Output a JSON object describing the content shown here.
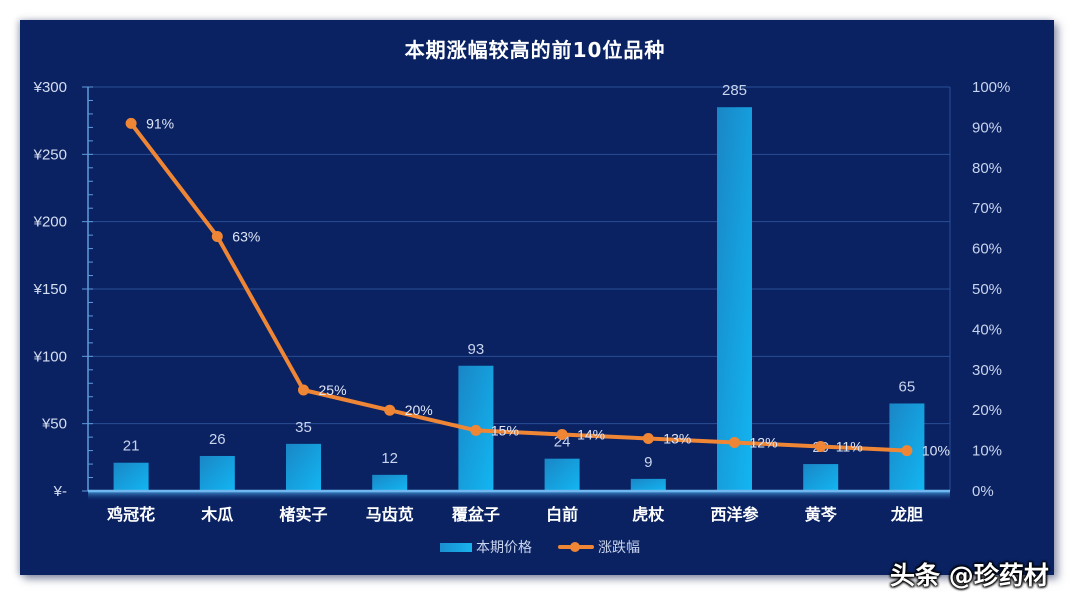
{
  "chart_data": {
    "type": "bar+line",
    "title": "本期涨幅较高的前10位品种",
    "categories": [
      "鸡冠花",
      "木瓜",
      "楮实子",
      "马齿苋",
      "覆盆子",
      "白前",
      "虎杖",
      "西洋参",
      "黄芩",
      "龙胆"
    ],
    "series": [
      {
        "name": "本期价格",
        "type": "bar",
        "axis": "left",
        "values": [
          21,
          26,
          35,
          12,
          93,
          24,
          9,
          285,
          20,
          65
        ],
        "color": "#15a6e6"
      },
      {
        "name": "涨跌幅",
        "type": "line",
        "axis": "right",
        "values": [
          91,
          63,
          25,
          20,
          15,
          14,
          13,
          12,
          11,
          10
        ],
        "value_labels": [
          "91%",
          "63%",
          "25%",
          "20%",
          "15%",
          "14%",
          "13%",
          "12%",
          "11%",
          "10%"
        ],
        "color": "#ef8636"
      }
    ],
    "left_axis": {
      "ticks": [
        "¥-",
        "¥50",
        "¥100",
        "¥150",
        "¥200",
        "¥250",
        "¥300"
      ],
      "ylim": [
        0,
        300
      ]
    },
    "right_axis": {
      "ticks": [
        "0%",
        "10%",
        "20%",
        "30%",
        "40%",
        "50%",
        "60%",
        "70%",
        "80%",
        "90%",
        "100%"
      ],
      "ylim": [
        0,
        100
      ]
    },
    "legend_position": "bottom",
    "grid": true,
    "xlabel": "",
    "ylabel": ""
  },
  "header": {
    "title": "本期涨幅较高的前10位品种"
  },
  "legend": {
    "bar_label": "本期价格",
    "line_label": "涨跌幅"
  },
  "watermark": "头条 @珍药材",
  "colors": {
    "background": "#0a2262",
    "bar": "#15a6e6",
    "line": "#ef8636",
    "text": "#c9d4ee"
  }
}
